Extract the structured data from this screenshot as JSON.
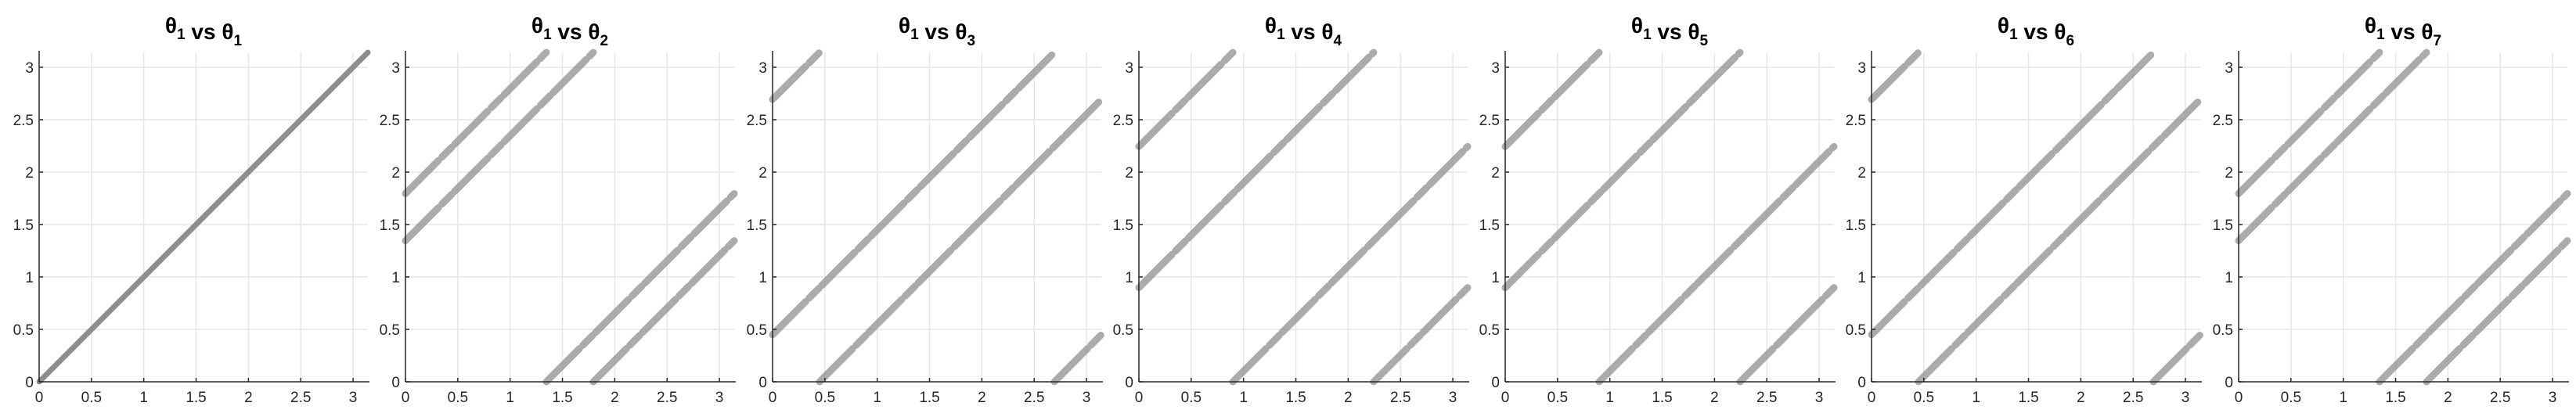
{
  "chart_data": [
    {
      "type": "scatter",
      "title": {
        "base": "θ",
        "sub": "1",
        "mid": " vs ",
        "base2": "θ",
        "sub2": "1"
      },
      "xlim": [
        0,
        3.14159
      ],
      "ylim": [
        0,
        3.14159
      ],
      "xticks": [
        "0",
        "0.5",
        "1",
        "1.5",
        "2",
        "2.5",
        "3"
      ],
      "yticks": [
        "0",
        "0.5",
        "1",
        "1.5",
        "2",
        "2.5",
        "3"
      ],
      "grid": true,
      "series": [
        {
          "color": "#888888",
          "segments": [
            [
              0,
              0,
              3.1416,
              3.1416
            ]
          ]
        }
      ]
    },
    {
      "type": "scatter",
      "title": {
        "base": "θ",
        "sub": "1",
        "mid": " vs ",
        "base2": "θ",
        "sub2": "2"
      },
      "xlim": [
        0,
        3.14159
      ],
      "ylim": [
        0,
        3.14159
      ],
      "xticks": [
        "0",
        "0.5",
        "1",
        "1.5",
        "2",
        "2.5",
        "3"
      ],
      "yticks": [
        "0",
        "0.5",
        "1",
        "1.5",
        "2",
        "2.5",
        "3"
      ],
      "grid": true,
      "series": [
        {
          "color": "#8f8f8f",
          "segments": [
            [
              0,
              1.795,
              1.346,
              3.1416
            ],
            [
              0,
              1.346,
              1.795,
              3.1416
            ],
            [
              1.346,
              0,
              3.1416,
              1.795
            ],
            [
              1.795,
              0,
              3.1416,
              1.346
            ]
          ]
        }
      ]
    },
    {
      "type": "scatter",
      "title": {
        "base": "θ",
        "sub": "1",
        "mid": " vs ",
        "base2": "θ",
        "sub2": "3"
      },
      "xlim": [
        0,
        3.14159
      ],
      "ylim": [
        0,
        3.14159
      ],
      "xticks": [
        "0",
        "0.5",
        "1",
        "1.5",
        "2",
        "2.5",
        "3"
      ],
      "yticks": [
        "0",
        "0.5",
        "1",
        "1.5",
        "2",
        "2.5",
        "3"
      ],
      "grid": true,
      "series": [
        {
          "color": "#8f8f8f",
          "segments": [
            [
              0,
              2.693,
              0.449,
              3.1416
            ],
            [
              0,
              0.449,
              2.693,
              3.1416
            ],
            [
              0.449,
              0,
              3.1416,
              2.693
            ],
            [
              2.693,
              0,
              3.1416,
              0.449
            ]
          ]
        }
      ]
    },
    {
      "type": "scatter",
      "title": {
        "base": "θ",
        "sub": "1",
        "mid": " vs ",
        "base2": "θ",
        "sub2": "4"
      },
      "xlim": [
        0,
        3.14159
      ],
      "ylim": [
        0,
        3.14159
      ],
      "xticks": [
        "0",
        "0.5",
        "1",
        "1.5",
        "2",
        "2.5",
        "3"
      ],
      "yticks": [
        "0",
        "0.5",
        "1",
        "1.5",
        "2",
        "2.5",
        "3"
      ],
      "grid": true,
      "series": [
        {
          "color": "#8f8f8f",
          "segments": [
            [
              0,
              2.244,
              0.898,
              3.1416
            ],
            [
              0,
              0.898,
              2.244,
              3.1416
            ],
            [
              0.898,
              0,
              3.1416,
              2.244
            ],
            [
              2.244,
              0,
              3.1416,
              0.898
            ]
          ]
        }
      ]
    },
    {
      "type": "scatter",
      "title": {
        "base": "θ",
        "sub": "1",
        "mid": " vs ",
        "base2": "θ",
        "sub2": "5"
      },
      "xlim": [
        0,
        3.14159
      ],
      "ylim": [
        0,
        3.14159
      ],
      "xticks": [
        "0",
        "0.5",
        "1",
        "1.5",
        "2",
        "2.5",
        "3"
      ],
      "yticks": [
        "0",
        "0.5",
        "1",
        "1.5",
        "2",
        "2.5",
        "3"
      ],
      "grid": true,
      "series": [
        {
          "color": "#8f8f8f",
          "segments": [
            [
              0,
              2.244,
              0.898,
              3.1416
            ],
            [
              0,
              0.898,
              2.244,
              3.1416
            ],
            [
              0.898,
              0,
              3.1416,
              2.244
            ],
            [
              2.244,
              0,
              3.1416,
              0.898
            ]
          ]
        }
      ]
    },
    {
      "type": "scatter",
      "title": {
        "base": "θ",
        "sub": "1",
        "mid": " vs ",
        "base2": "θ",
        "sub2": "6"
      },
      "xlim": [
        0,
        3.14159
      ],
      "ylim": [
        0,
        3.14159
      ],
      "xticks": [
        "0",
        "0.5",
        "1",
        "1.5",
        "2",
        "2.5",
        "3"
      ],
      "yticks": [
        "0",
        "0.5",
        "1",
        "1.5",
        "2",
        "2.5",
        "3"
      ],
      "grid": true,
      "series": [
        {
          "color": "#8f8f8f",
          "segments": [
            [
              0,
              2.693,
              0.449,
              3.1416
            ],
            [
              0,
              0.449,
              2.693,
              3.1416
            ],
            [
              0.449,
              0,
              3.1416,
              2.693
            ],
            [
              2.693,
              0,
              3.1416,
              0.449
            ]
          ]
        }
      ]
    },
    {
      "type": "scatter",
      "title": {
        "base": "θ",
        "sub": "1",
        "mid": " vs ",
        "base2": "θ",
        "sub2": "7"
      },
      "xlim": [
        0,
        3.14159
      ],
      "ylim": [
        0,
        3.14159
      ],
      "xticks": [
        "0",
        "0.5",
        "1",
        "1.5",
        "2",
        "2.5",
        "3"
      ],
      "yticks": [
        "0",
        "0.5",
        "1",
        "1.5",
        "2",
        "2.5",
        "3"
      ],
      "grid": true,
      "series": [
        {
          "color": "#8f8f8f",
          "segments": [
            [
              0,
              1.795,
              1.346,
              3.1416
            ],
            [
              0,
              1.346,
              1.795,
              3.1416
            ],
            [
              1.346,
              0,
              3.1416,
              1.795
            ],
            [
              1.795,
              0,
              3.1416,
              1.346
            ]
          ]
        }
      ]
    }
  ]
}
